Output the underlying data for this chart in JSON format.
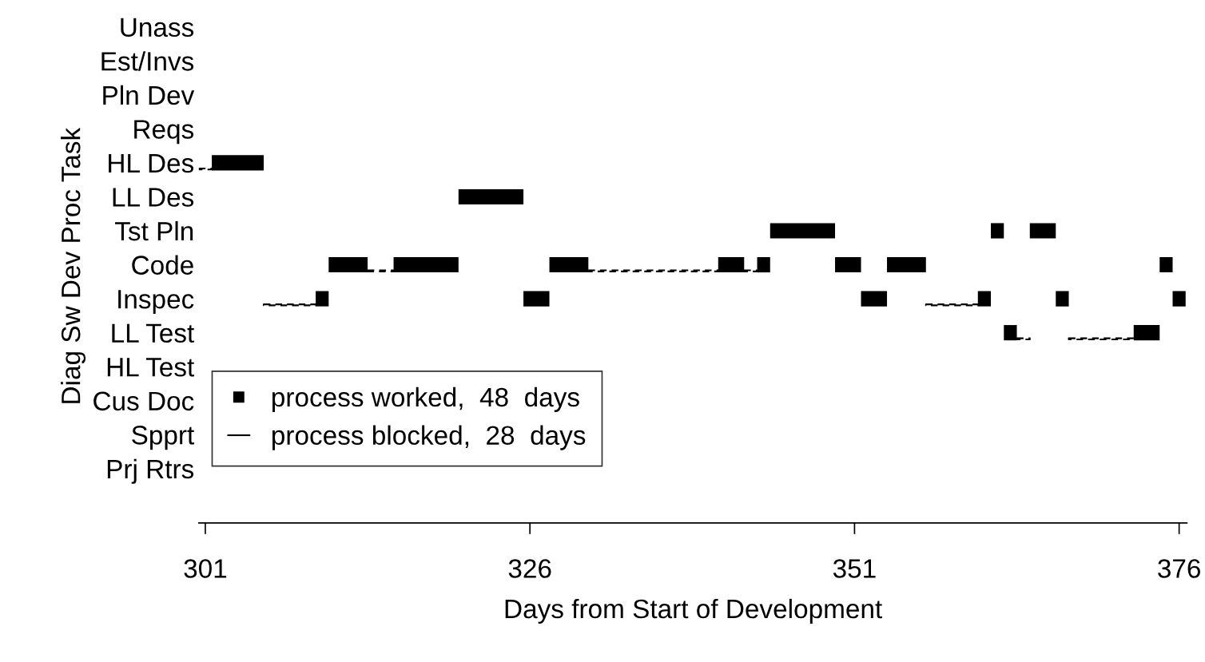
{
  "chart_data": {
    "type": "bar",
    "orientation": "horizontal",
    "xlabel": "Days from Start of Development",
    "ylabel": "Diag Sw Dev Proc Task",
    "categories": [
      "Unass",
      "Est/Invs",
      "Pln Dev",
      "Reqs",
      "HL Des",
      "LL Des",
      "Tst Pln",
      "Code",
      "Inspec",
      "LL Test",
      "HL Test",
      "Cus Doc",
      "Spprt",
      "Prj Rtrs"
    ],
    "xlim": [
      300.5,
      376.6
    ],
    "xticks": [
      301,
      326,
      351,
      376
    ],
    "grid": false,
    "legend": "bottom left",
    "series": [
      {
        "name": "process worked,  48  days",
        "color": "#000000",
        "line_style": "solid",
        "base": [
          null,
          null,
          null,
          null,
          301.5,
          320.5,
          344.5,
          310.5,
          309.5,
          362.5,
          null,
          null,
          null,
          null
        ],
        "values": [
          null,
          null,
          null,
          null,
          4,
          5,
          5,
          3,
          1,
          1,
          null,
          null,
          null,
          null
        ]
      },
      {
        "color": "#000000",
        "line_style": "solid",
        "base": [
          null,
          null,
          null,
          null,
          null,
          null,
          361.5,
          315.5,
          325.5,
          372.5,
          null,
          null,
          null,
          null
        ],
        "values": [
          null,
          null,
          null,
          null,
          null,
          null,
          1,
          5,
          2,
          2,
          null,
          null,
          null,
          null
        ]
      },
      {
        "color": "#000000",
        "line_style": "solid",
        "base": [
          null,
          null,
          null,
          null,
          null,
          null,
          364.5,
          327.5,
          351.5,
          null,
          null,
          null,
          null,
          null
        ],
        "values": [
          null,
          null,
          null,
          null,
          null,
          null,
          2,
          3,
          2,
          null,
          null,
          null,
          null,
          null
        ]
      },
      {
        "color": "#000000",
        "line_style": "solid",
        "base": [
          null,
          null,
          null,
          null,
          null,
          null,
          null,
          340.5,
          360.5,
          null,
          null,
          null,
          null,
          null
        ],
        "values": [
          null,
          null,
          null,
          null,
          null,
          null,
          null,
          2,
          1,
          null,
          null,
          null,
          null,
          null
        ]
      },
      {
        "color": "#000000",
        "line_style": "solid",
        "base": [
          null,
          null,
          null,
          null,
          null,
          null,
          null,
          343.5,
          366.5,
          null,
          null,
          null,
          null,
          null
        ],
        "values": [
          null,
          null,
          null,
          null,
          null,
          null,
          null,
          1,
          1,
          null,
          null,
          null,
          null,
          null
        ]
      },
      {
        "color": "#000000",
        "line_style": "solid",
        "base": [
          null,
          null,
          null,
          null,
          null,
          null,
          null,
          349.5,
          375.5,
          null,
          null,
          null,
          null,
          null
        ],
        "values": [
          null,
          null,
          null,
          null,
          null,
          null,
          null,
          2,
          1,
          null,
          null,
          null,
          null,
          null
        ]
      },
      {
        "color": "#000000",
        "line_style": "solid",
        "base": [
          null,
          null,
          null,
          null,
          null,
          null,
          null,
          353.5,
          null,
          null,
          null,
          null,
          null,
          null
        ],
        "values": [
          null,
          null,
          null,
          null,
          null,
          null,
          null,
          3,
          null,
          null,
          null,
          null,
          null,
          null
        ]
      },
      {
        "color": "#000000",
        "line_style": "solid",
        "base": [
          null,
          null,
          null,
          null,
          null,
          null,
          null,
          374.5,
          null,
          null,
          null,
          null,
          null,
          null
        ],
        "values": [
          null,
          null,
          null,
          null,
          null,
          null,
          null,
          1,
          null,
          null,
          null,
          null,
          null,
          null
        ]
      },
      {
        "name": "process blocked,  28  days",
        "color": "#000000",
        "line_style": "dashed",
        "base": [
          null,
          null,
          null,
          null,
          300.5,
          null,
          null,
          313.5,
          305.5,
          363.5,
          null,
          null,
          null,
          null
        ],
        "values": [
          null,
          null,
          null,
          null,
          1,
          null,
          null,
          2,
          4,
          1,
          null,
          null,
          null,
          null
        ]
      },
      {
        "color": "#000000",
        "line_style": "dashed",
        "base": [
          null,
          null,
          null,
          null,
          null,
          null,
          null,
          330.5,
          356.5,
          367.5,
          null,
          null,
          null,
          null
        ],
        "values": [
          null,
          null,
          null,
          null,
          null,
          null,
          null,
          10,
          4,
          5,
          null,
          null,
          null,
          null
        ]
      },
      {
        "color": "#000000",
        "line_style": "dashed",
        "base": [
          null,
          null,
          null,
          null,
          null,
          null,
          null,
          342.5,
          null,
          null,
          null,
          null,
          null,
          null
        ],
        "values": [
          null,
          null,
          null,
          null,
          null,
          null,
          null,
          1,
          null,
          null,
          null,
          null,
          null,
          null
        ]
      }
    ]
  }
}
